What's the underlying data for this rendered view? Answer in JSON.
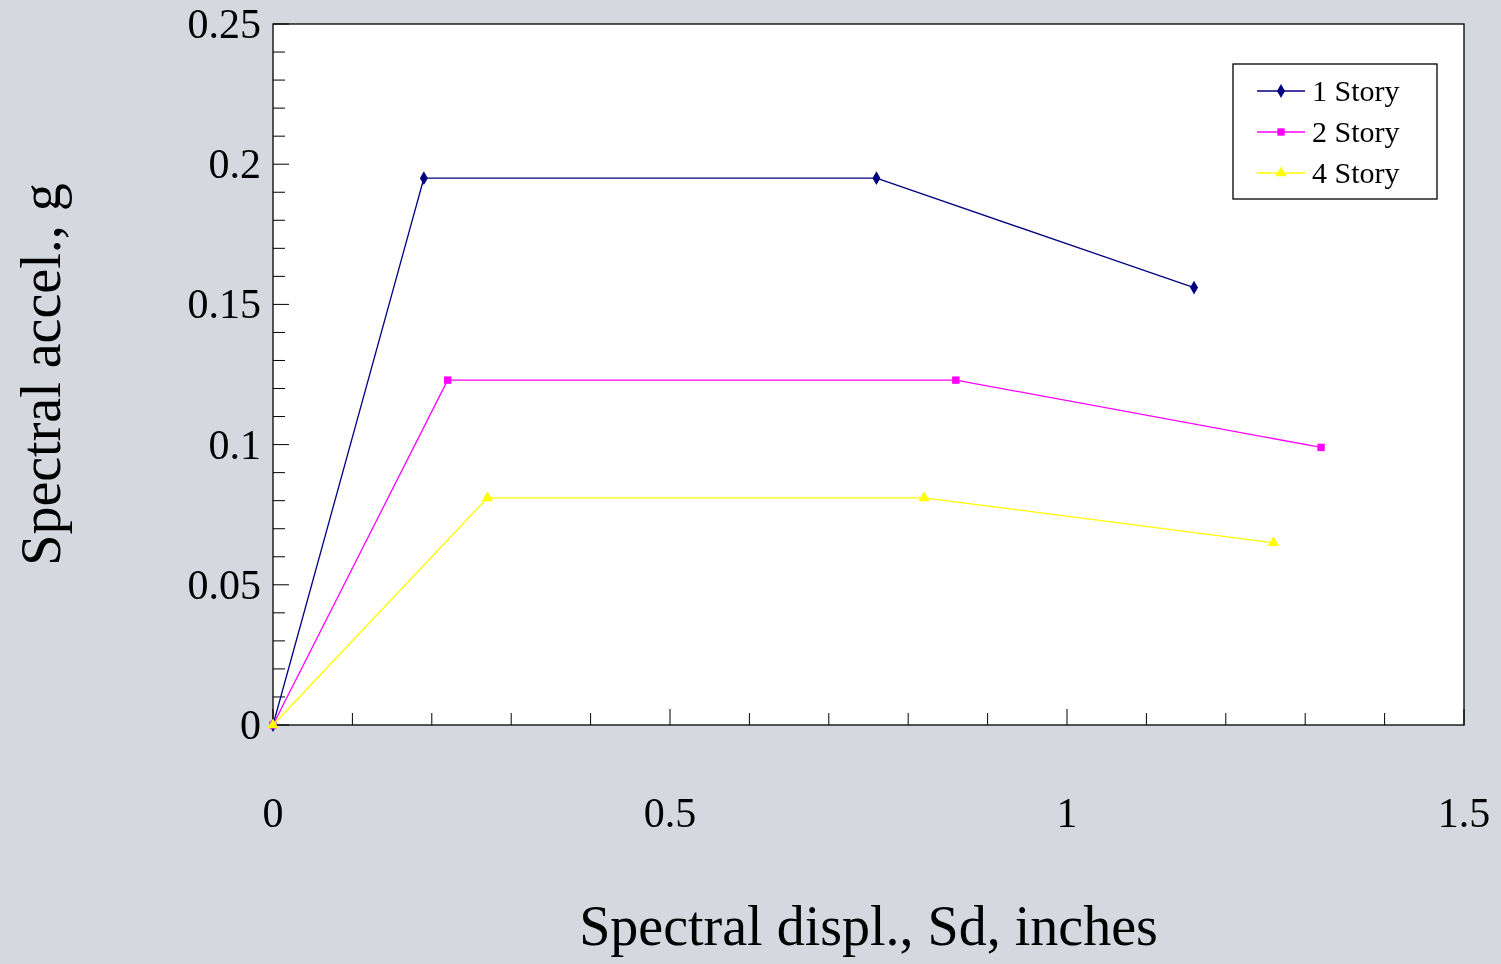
{
  "chart_data": {
    "type": "line",
    "xlabel": "Spectral displ., Sd, inches",
    "ylabel": "Spectral accel., g",
    "xlim": [
      0,
      1.5
    ],
    "ylim": [
      0,
      0.25
    ],
    "xticks": [
      0,
      {
        "value": 0.1,
        "label": null
      },
      {
        "value": 0.2,
        "label": null
      },
      {
        "value": 0.3,
        "label": null
      },
      {
        "value": 0.4,
        "label": null
      },
      0.5,
      {
        "value": 0.6,
        "label": null
      },
      {
        "value": 0.7,
        "label": null
      },
      {
        "value": 0.8,
        "label": null
      },
      {
        "value": 0.9,
        "label": null
      },
      1,
      {
        "value": 1.1,
        "label": null
      },
      {
        "value": 1.2,
        "label": null
      },
      {
        "value": 1.3,
        "label": null
      },
      {
        "value": 1.4,
        "label": null
      },
      1.5
    ],
    "yticks": [
      0,
      {
        "value": 0.01,
        "label": null
      },
      {
        "value": 0.02,
        "label": null
      },
      {
        "value": 0.03,
        "label": null
      },
      {
        "value": 0.04,
        "label": null
      },
      0.05,
      {
        "value": 0.06,
        "label": null
      },
      {
        "value": 0.07,
        "label": null
      },
      {
        "value": 0.08,
        "label": null
      },
      {
        "value": 0.09,
        "label": null
      },
      0.1,
      {
        "value": 0.11,
        "label": null
      },
      {
        "value": 0.12,
        "label": null
      },
      {
        "value": 0.13,
        "label": null
      },
      {
        "value": 0.14,
        "label": null
      },
      0.15,
      {
        "value": 0.16,
        "label": null
      },
      {
        "value": 0.17,
        "label": null
      },
      {
        "value": 0.18,
        "label": null
      },
      {
        "value": 0.19,
        "label": null
      },
      0.2,
      {
        "value": 0.21,
        "label": null
      },
      {
        "value": 0.22,
        "label": null
      },
      {
        "value": 0.23,
        "label": null
      },
      {
        "value": 0.24,
        "label": null
      },
      0.25
    ],
    "grid": false,
    "legend": "top right",
    "series": [
      {
        "name": "1 Story",
        "color": "#000080",
        "marker": "diamond",
        "x": [
          0,
          0.19,
          0.76,
          1.16
        ],
        "values": [
          0,
          0.195,
          0.195,
          0.156
        ]
      },
      {
        "name": "2 Story",
        "color": "#ff00ff",
        "marker": "square",
        "x": [
          0,
          0.22,
          0.86,
          1.32
        ],
        "values": [
          0,
          0.123,
          0.123,
          0.099
        ]
      },
      {
        "name": "4 Story",
        "color": "#ffff00",
        "marker": "triangle",
        "x": [
          0,
          0.27,
          0.82,
          1.26
        ],
        "values": [
          0,
          0.081,
          0.081,
          0.065
        ]
      }
    ]
  }
}
